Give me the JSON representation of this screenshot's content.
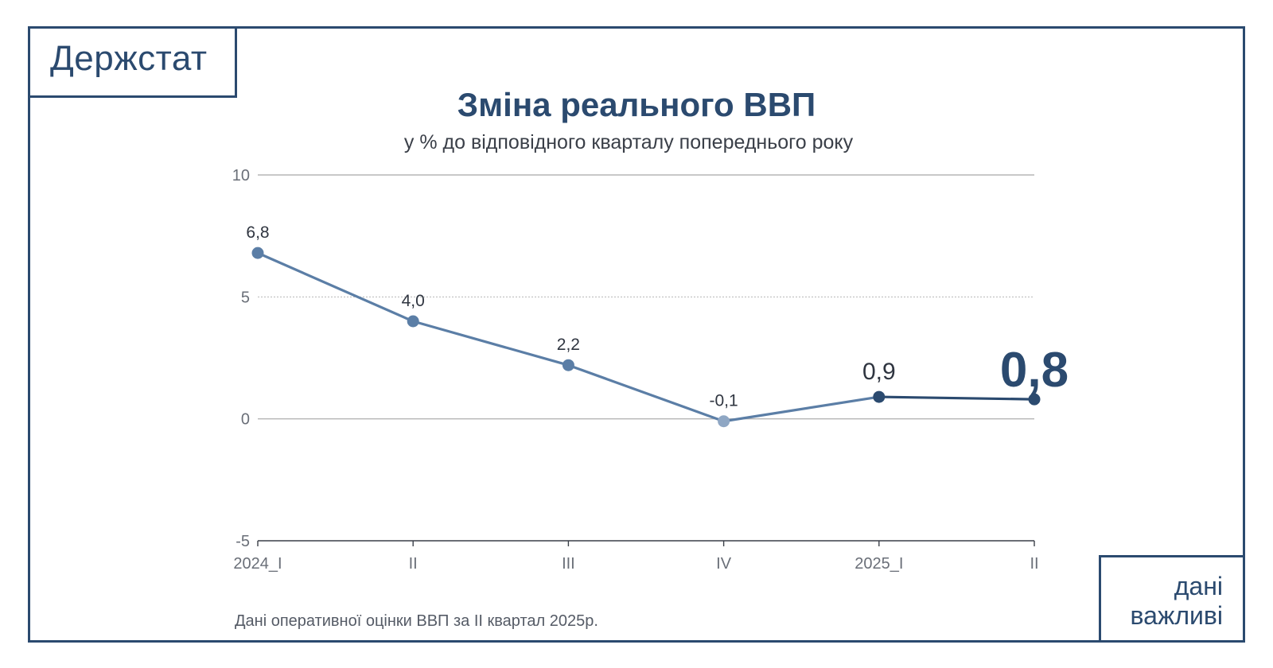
{
  "brand": {
    "logo": "Держстат"
  },
  "tag": {
    "line1": "дані",
    "line2": "важливі"
  },
  "footnote": "Дані оперативної оцінки ВВП за II квартал 2025р.",
  "colors": {
    "navy": "#2b4a6f",
    "line_light": "#5b7ea6",
    "point_light": "#8fa7c4",
    "grid": "#b5b5b5"
  },
  "chart_data": {
    "type": "line",
    "title": "Зміна реального ВВП",
    "subtitle": "у % до відповідного кварталу попереднього року",
    "categories": [
      "2024_I",
      "II",
      "III",
      "IV",
      "2025_I",
      "II"
    ],
    "values": [
      6.8,
      4.0,
      2.2,
      -0.1,
      0.9,
      0.8
    ],
    "value_labels": [
      "6,8",
      "4,0",
      "2,2",
      "-0,1",
      "0,9",
      "0,8"
    ],
    "yticks": [
      "10",
      "5",
      "0",
      "-5"
    ],
    "ylim": [
      -5,
      10
    ],
    "grid": true,
    "legend": "none"
  }
}
